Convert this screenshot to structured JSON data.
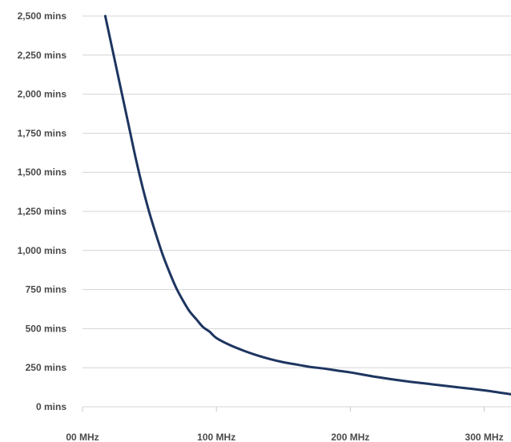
{
  "chart_data": {
    "type": "line",
    "title": "",
    "xlabel": "",
    "ylabel": "",
    "xlim": [
      0,
      320
    ],
    "ylim": [
      0,
      2500
    ],
    "x_ticks": [
      0,
      100,
      200,
      300
    ],
    "x_tick_labels": [
      "00 MHz",
      "100 MHz",
      "200 MHz",
      "300 MHz"
    ],
    "y_ticks": [
      0,
      250,
      500,
      750,
      1000,
      1250,
      1500,
      1750,
      2000,
      2250,
      2500
    ],
    "y_tick_labels": [
      "0 mins",
      "250 mins",
      "500 mins",
      "750 mins",
      "1,000 mins",
      "1,250 mins",
      "1,500 mins",
      "1,750 mins",
      "2,000 mins",
      "2,250 mins",
      "2,500 mins"
    ],
    "grid": "horizontal",
    "legend": "none",
    "series": [
      {
        "color": "#1e3560",
        "x": [
          17,
          20,
          25,
          30,
          35,
          40,
          45,
          50,
          55,
          60,
          65,
          70,
          75,
          80,
          85,
          90,
          95,
          100,
          110,
          120,
          130,
          140,
          150,
          160,
          170,
          180,
          190,
          200,
          220,
          240,
          260,
          280,
          300,
          320
        ],
        "y": [
          2500,
          2380,
          2180,
          1980,
          1780,
          1580,
          1400,
          1240,
          1100,
          970,
          860,
          760,
          680,
          610,
          560,
          510,
          480,
          440,
          395,
          360,
          330,
          305,
          285,
          270,
          255,
          245,
          232,
          220,
          190,
          165,
          145,
          125,
          105,
          80
        ]
      }
    ]
  }
}
